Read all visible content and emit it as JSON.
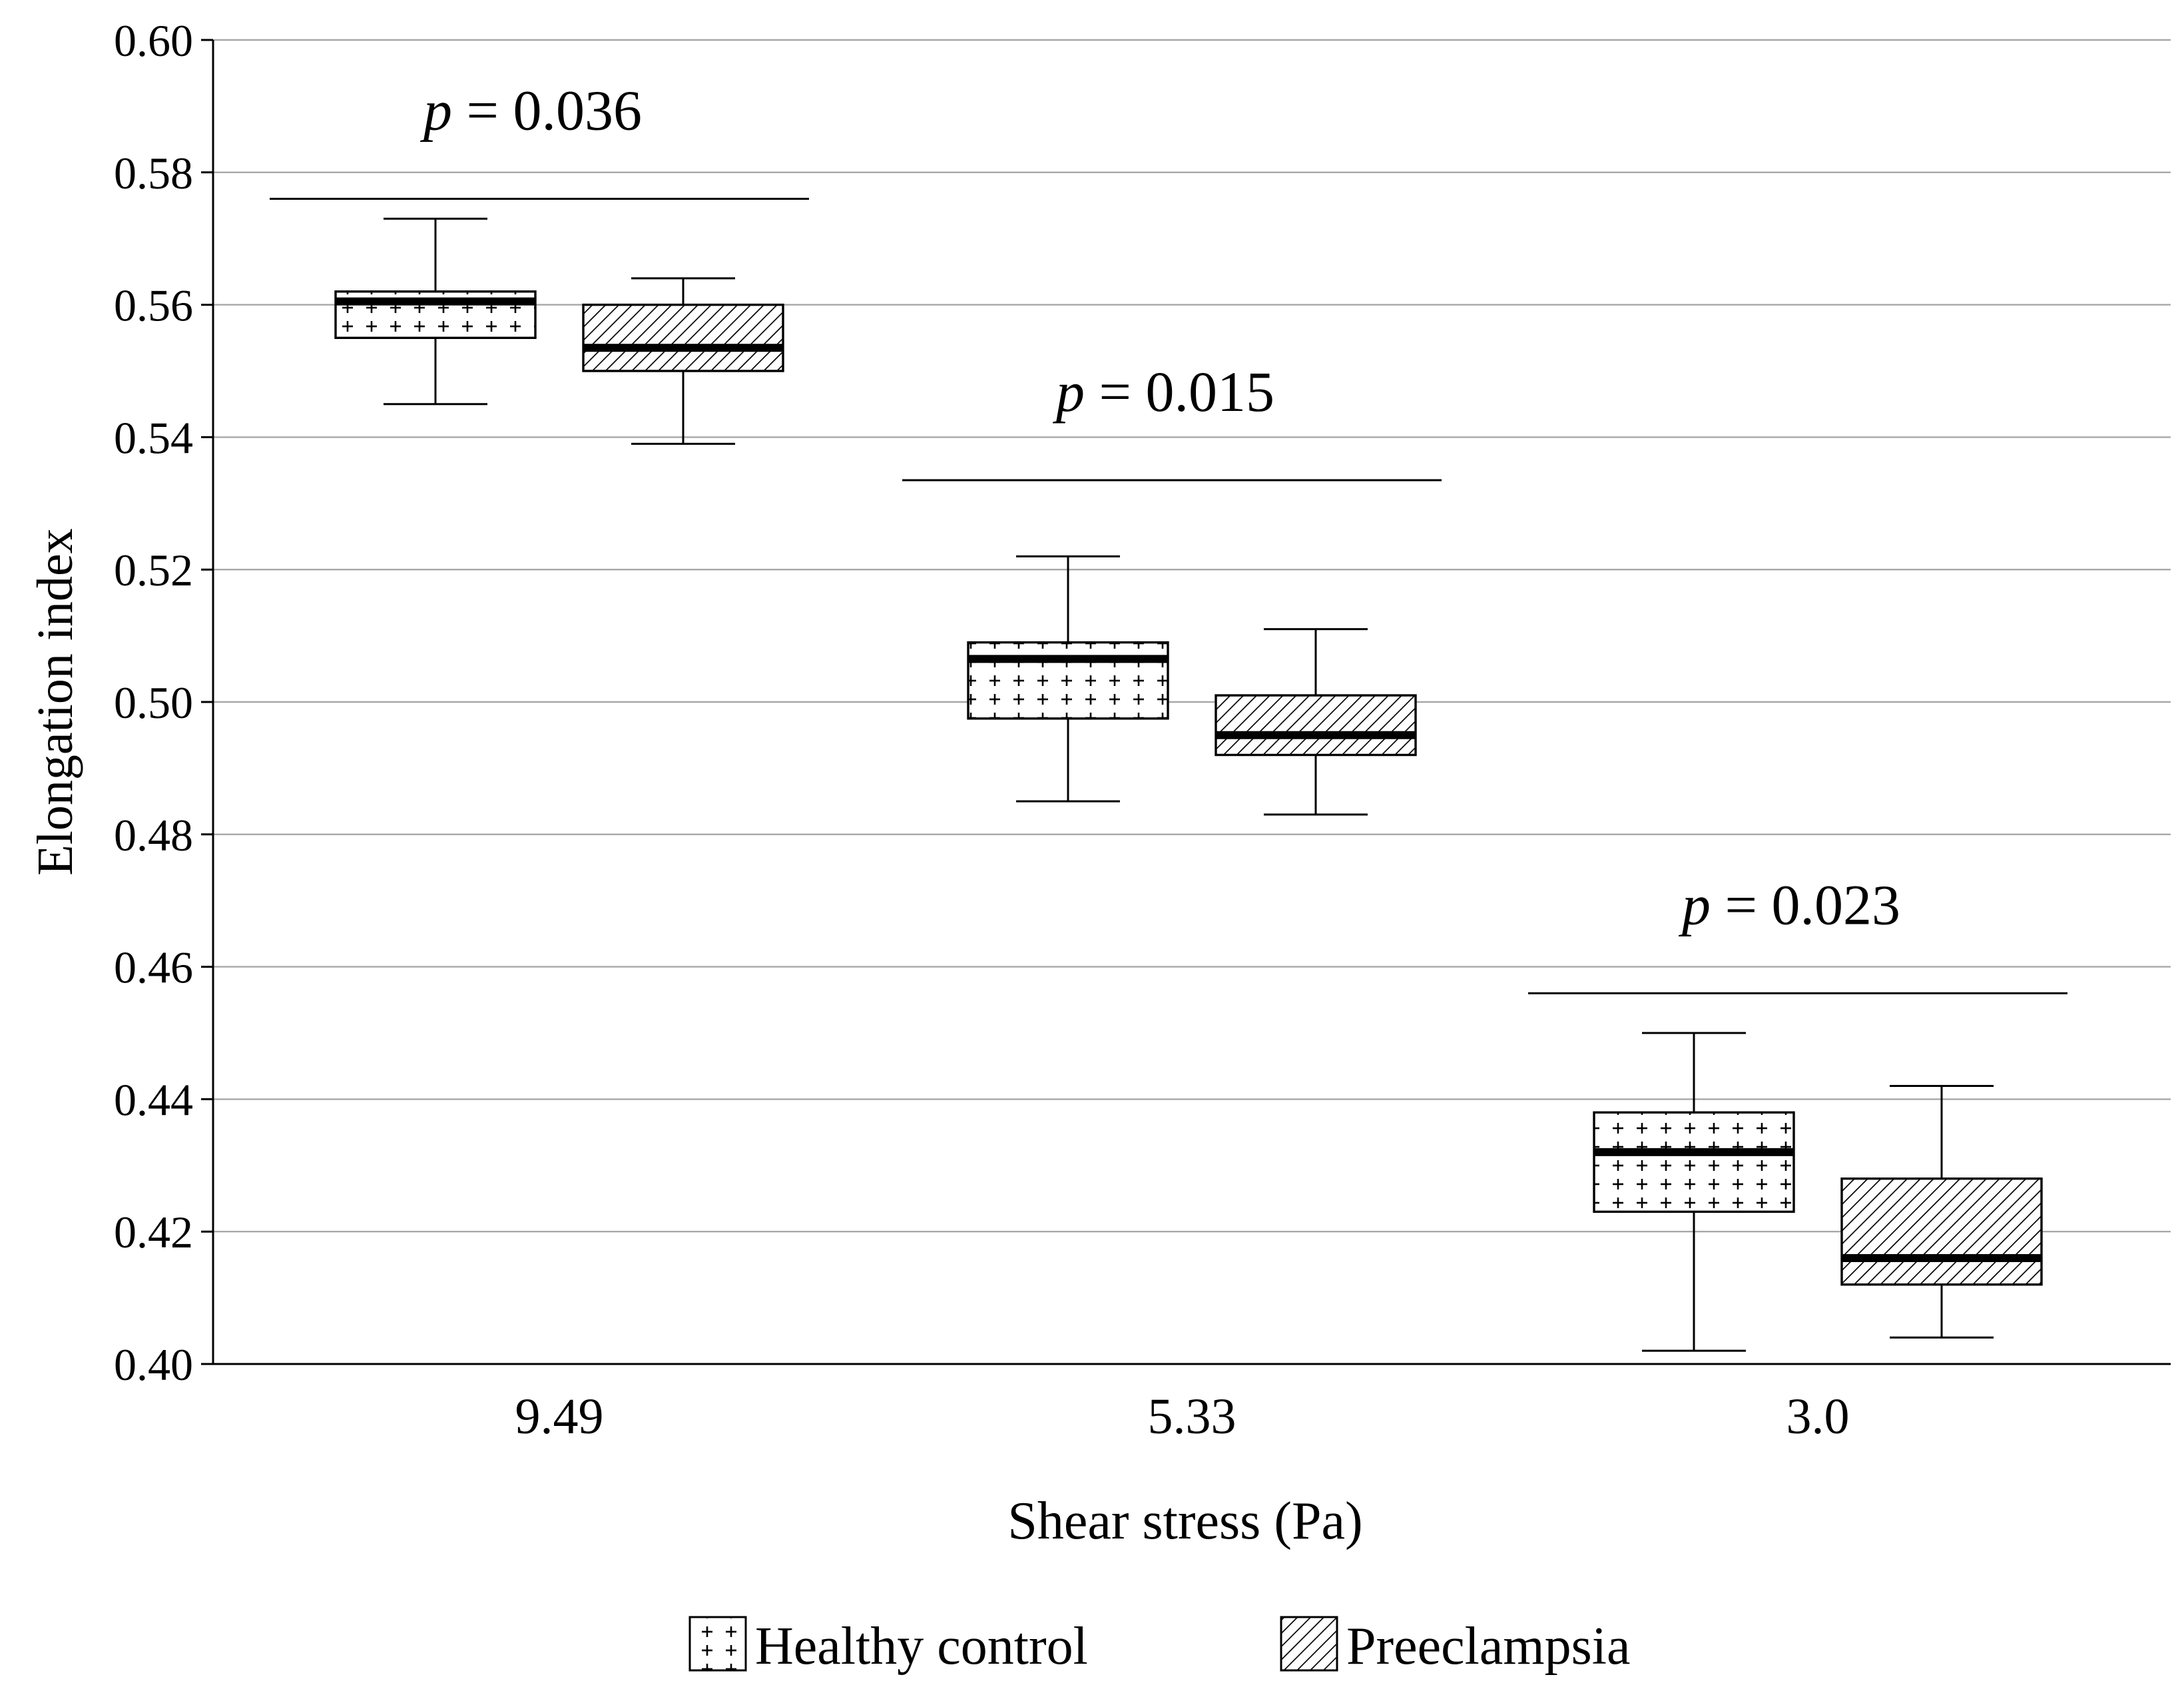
{
  "chart_data": {
    "type": "boxplot",
    "title": "",
    "xlabel": "Shear stress (Pa)",
    "ylabel": "Elongation index",
    "ylim": [
      0.4,
      0.6
    ],
    "yticks": [
      0.4,
      0.42,
      0.44,
      0.46,
      0.48,
      0.5,
      0.52,
      0.54,
      0.56,
      0.58,
      0.6
    ],
    "ytick_labels": [
      "0.40",
      "0.42",
      "0.44",
      "0.46",
      "0.48",
      "0.50",
      "0.52",
      "0.54",
      "0.56",
      "0.58",
      "0.60"
    ],
    "grid": "horizontal",
    "categories": [
      "9.49",
      "5.33",
      "3.0"
    ],
    "series": [
      {
        "name": "Healthy control",
        "pattern": "crosses",
        "boxes": [
          {
            "min": 0.545,
            "q1": 0.555,
            "median": 0.5605,
            "q3": 0.562,
            "max": 0.573
          },
          {
            "min": 0.485,
            "q1": 0.4975,
            "median": 0.5065,
            "q3": 0.509,
            "max": 0.522
          },
          {
            "min": 0.402,
            "q1": 0.423,
            "median": 0.432,
            "q3": 0.438,
            "max": 0.45
          }
        ]
      },
      {
        "name": "Preeclampsia",
        "pattern": "diagonal",
        "boxes": [
          {
            "min": 0.539,
            "q1": 0.55,
            "median": 0.5535,
            "q3": 0.56,
            "max": 0.564
          },
          {
            "min": 0.483,
            "q1": 0.492,
            "median": 0.495,
            "q3": 0.501,
            "max": 0.511
          },
          {
            "min": 0.404,
            "q1": 0.412,
            "median": 0.416,
            "q3": 0.428,
            "max": 0.442
          }
        ]
      }
    ],
    "annotations": [
      {
        "category": "9.49",
        "italic": "p",
        "text": " = 0.036",
        "bracket_y": 0.576
      },
      {
        "category": "5.33",
        "italic": "p",
        "text": " = 0.015",
        "bracket_y": 0.5335
      },
      {
        "category": "3.0",
        "italic": "p",
        "text": " = 0.023",
        "bracket_y": 0.456
      }
    ],
    "legend": {
      "position": "bottom-center",
      "entries": [
        "Healthy control",
        "Preeclampsia"
      ]
    }
  }
}
